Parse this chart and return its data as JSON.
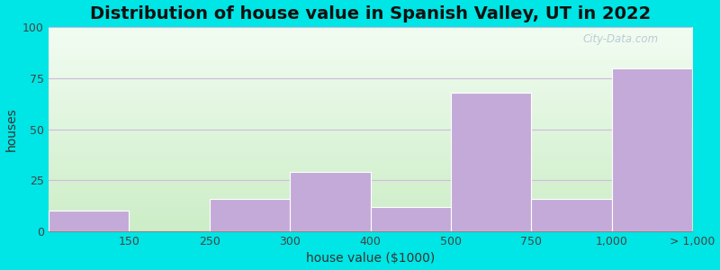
{
  "title": "Distribution of house value in Spanish Valley, UT in 2022",
  "xlabel": "house value ($1000)",
  "ylabel": "houses",
  "tick_positions": [
    0,
    1,
    2,
    3,
    4,
    5,
    6,
    7,
    8
  ],
  "tick_labels": [
    "",
    "150",
    "250",
    "300",
    "400",
    "500",
    "750",
    "1,000",
    "> 1,000"
  ],
  "bar_lefts": [
    0,
    1,
    2,
    3,
    4,
    5,
    6,
    7
  ],
  "bar_widths": [
    1,
    1,
    1,
    1,
    1,
    1,
    1,
    1
  ],
  "values": [
    10,
    0,
    16,
    29,
    12,
    68,
    16,
    80
  ],
  "bar_color": "#c4aad8",
  "ylim": [
    0,
    100
  ],
  "yticks": [
    0,
    25,
    50,
    75,
    100
  ],
  "outer_bg": "#00e5e5",
  "title_fontsize": 14,
  "axis_label_fontsize": 10,
  "tick_fontsize": 9,
  "watermark": "City-Data.com"
}
